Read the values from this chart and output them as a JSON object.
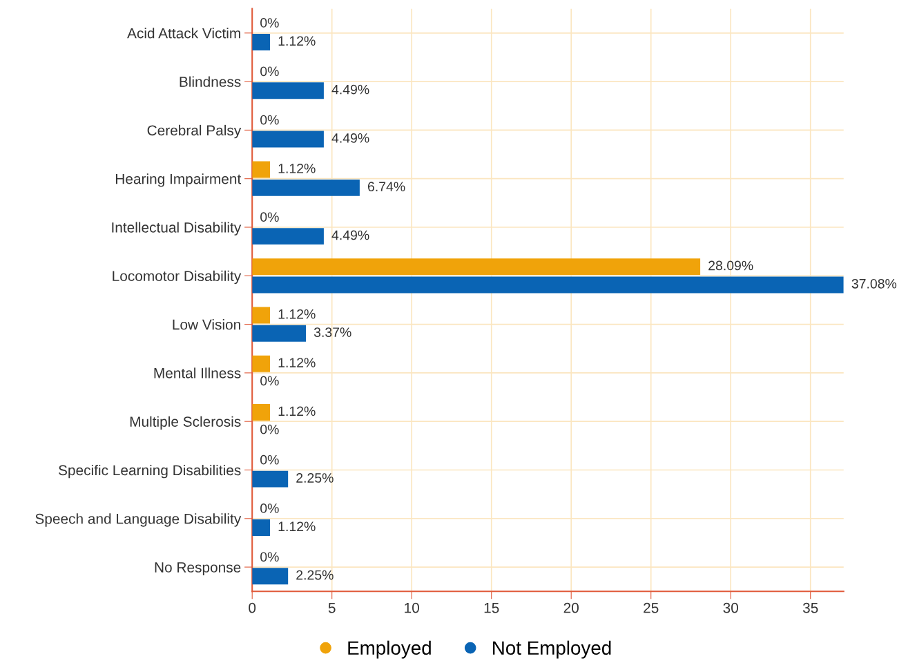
{
  "chart_data": {
    "type": "bar",
    "orientation": "horizontal",
    "categories": [
      "Acid Attack Victim",
      "Blindness",
      "Cerebral Palsy",
      "Hearing Impairment",
      "Intellectual Disability",
      "Locomotor Disability",
      "Low Vision",
      "Mental Illness",
      "Multiple Sclerosis",
      "Specific Learning Disabilities",
      "Speech and Language Disability",
      "No Response"
    ],
    "series": [
      {
        "name": "Employed",
        "color": "#f0a30a",
        "values": [
          0,
          0,
          0,
          1.12,
          0,
          28.09,
          1.12,
          1.12,
          1.12,
          0,
          0,
          0
        ],
        "value_labels": [
          "0%",
          "0%",
          "0%",
          "1.12%",
          "0%",
          "28.09%",
          "1.12%",
          "1.12%",
          "1.12%",
          "0%",
          "0%",
          "0%"
        ]
      },
      {
        "name": "Not Employed",
        "color": "#0a64b4",
        "values": [
          1.12,
          4.49,
          4.49,
          6.74,
          4.49,
          37.08,
          3.37,
          0,
          0,
          2.25,
          1.12,
          2.25
        ],
        "value_labels": [
          "1.12%",
          "4.49%",
          "4.49%",
          "6.74%",
          "4.49%",
          "37.08%",
          "3.37%",
          "0%",
          "0%",
          "2.25%",
          "1.12%",
          "2.25%"
        ]
      }
    ],
    "xlim": [
      0,
      37.08
    ],
    "xticks": [
      0,
      5,
      10,
      15,
      20,
      25,
      30,
      35
    ],
    "grid": true,
    "legend": "bottom",
    "marker": "circle"
  }
}
